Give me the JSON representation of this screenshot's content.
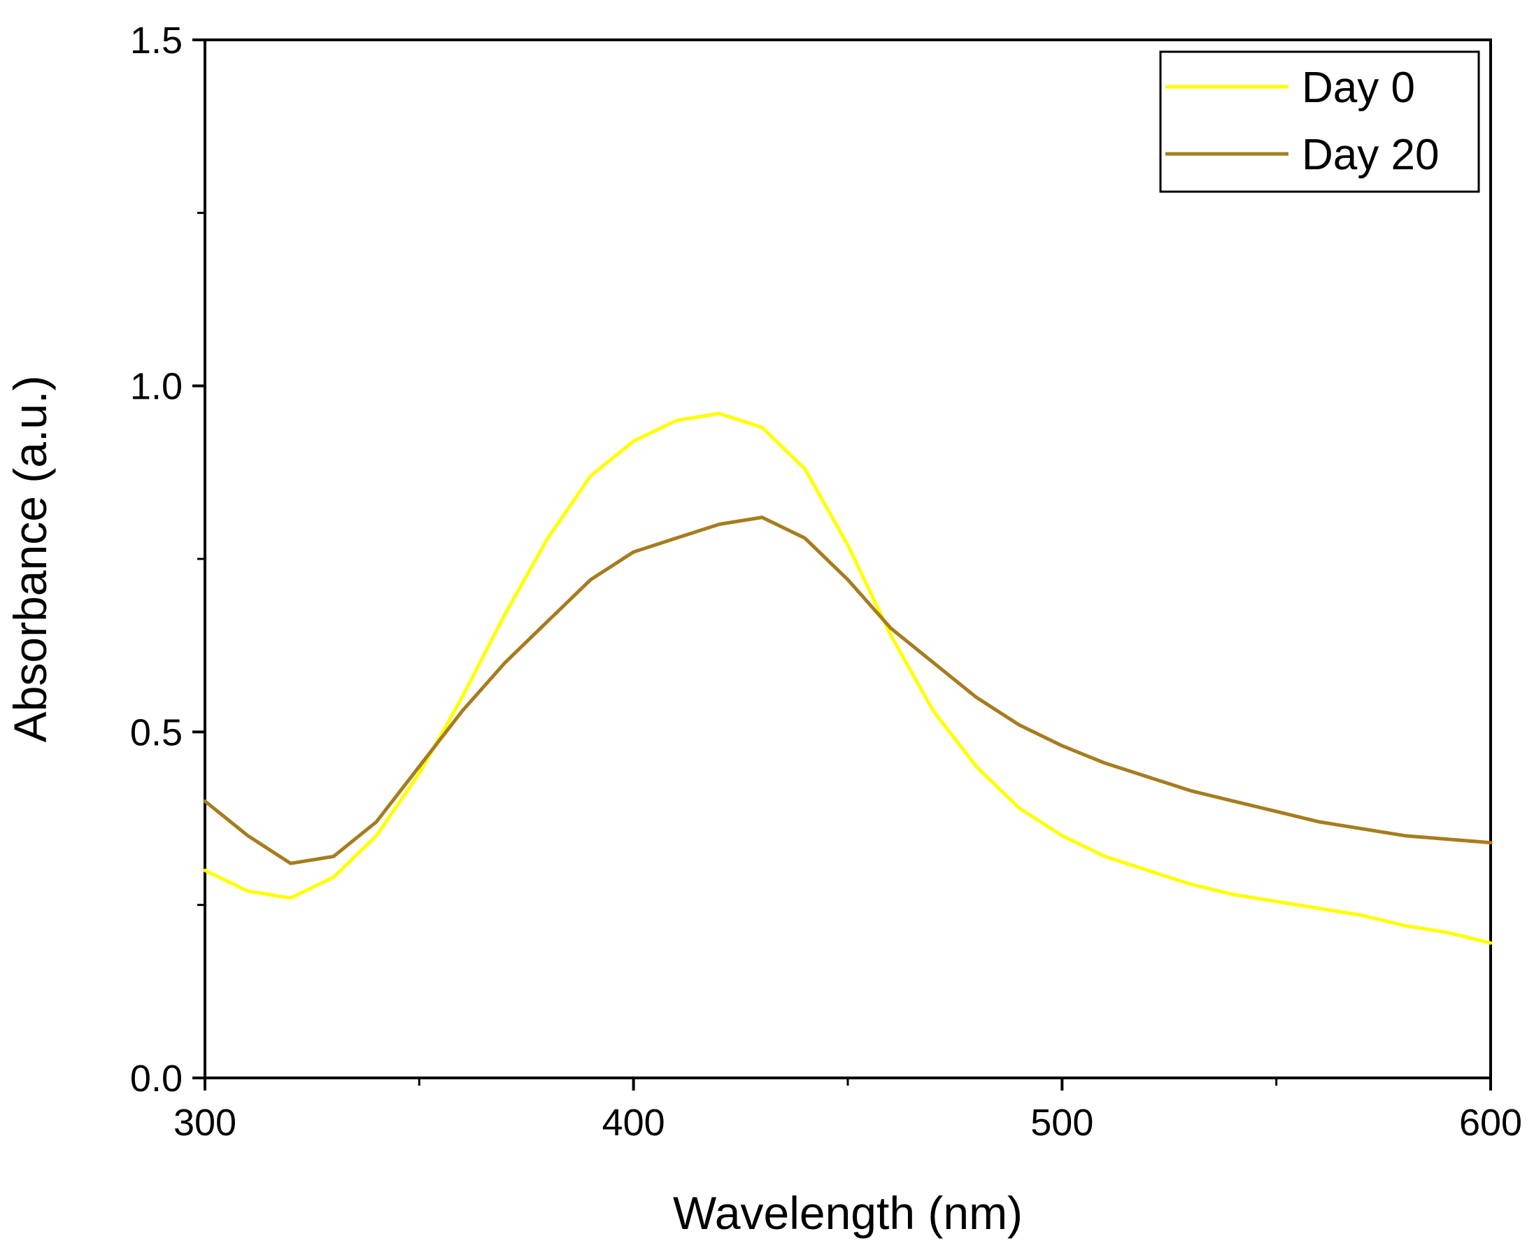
{
  "chart_data": {
    "type": "line",
    "title": "",
    "xlabel": "Wavelength (nm)",
    "ylabel": "Absorbance (a.u.)",
    "xlim": [
      300,
      600
    ],
    "ylim": [
      0.0,
      1.5
    ],
    "x_ticks": [
      300,
      400,
      500,
      600
    ],
    "x_tick_labels": [
      "300",
      "400",
      "500",
      "600"
    ],
    "y_ticks": [
      0.0,
      0.5,
      1.0,
      1.5
    ],
    "y_tick_labels": [
      "0.0",
      "0.5",
      "1.0",
      "1.5"
    ],
    "x_minor_ticks": [
      350,
      450,
      550
    ],
    "y_minor_ticks": [
      0.25,
      0.75,
      1.25
    ],
    "grid": false,
    "legend_position": "top-right",
    "series": [
      {
        "name": "Day 0",
        "color": "#ffff00",
        "x": [
          300,
          310,
          320,
          330,
          340,
          350,
          360,
          370,
          380,
          390,
          400,
          410,
          420,
          430,
          440,
          450,
          460,
          470,
          480,
          490,
          500,
          510,
          520,
          530,
          540,
          550,
          560,
          570,
          580,
          590,
          600
        ],
        "y": [
          0.3,
          0.27,
          0.26,
          0.29,
          0.35,
          0.44,
          0.55,
          0.67,
          0.78,
          0.87,
          0.92,
          0.95,
          0.96,
          0.94,
          0.88,
          0.77,
          0.64,
          0.53,
          0.45,
          0.39,
          0.35,
          0.32,
          0.3,
          0.28,
          0.265,
          0.255,
          0.245,
          0.235,
          0.22,
          0.21,
          0.195
        ]
      },
      {
        "name": "Day 20",
        "color": "#a67c1e",
        "x": [
          300,
          310,
          320,
          330,
          340,
          350,
          360,
          370,
          380,
          390,
          400,
          410,
          420,
          430,
          440,
          450,
          460,
          470,
          480,
          490,
          500,
          510,
          520,
          530,
          540,
          550,
          560,
          570,
          580,
          590,
          600
        ],
        "y": [
          0.4,
          0.35,
          0.31,
          0.32,
          0.37,
          0.45,
          0.53,
          0.6,
          0.66,
          0.72,
          0.76,
          0.78,
          0.8,
          0.81,
          0.78,
          0.72,
          0.65,
          0.6,
          0.55,
          0.51,
          0.48,
          0.455,
          0.435,
          0.415,
          0.4,
          0.385,
          0.37,
          0.36,
          0.35,
          0.345,
          0.34
        ]
      }
    ]
  }
}
